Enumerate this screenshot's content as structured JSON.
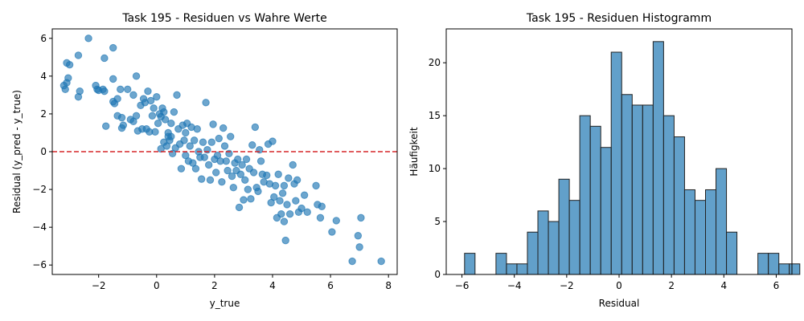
{
  "colors": {
    "marker": "#1f77b4",
    "refline": "#d62728",
    "bar_edge": "#222222"
  },
  "chart_data": [
    {
      "type": "scatter",
      "title": "Task 195 - Residuen vs Wahre Werte",
      "xlabel": "y_true",
      "ylabel": "Residual (y_pred - y_true)",
      "xlim": [
        -3.6,
        8.3
      ],
      "ylim": [
        -6.5,
        6.5
      ],
      "xticks": [
        -2,
        0,
        2,
        4,
        6,
        8
      ],
      "yticks": [
        -6,
        -4,
        -2,
        0,
        2,
        4,
        6
      ],
      "x_tick_labels": [
        "−2",
        "0",
        "2",
        "4",
        "6",
        "8"
      ],
      "y_tick_labels": [
        "−6",
        "−4",
        "−2",
        "0",
        "2",
        "4",
        "6"
      ],
      "reference_line": {
        "y": 0,
        "style": "dashed"
      },
      "grid": false,
      "points": [
        [
          -3.2,
          3.5
        ],
        [
          -3.1,
          4.7
        ],
        [
          -3.0,
          4.6
        ],
        [
          -3.05,
          3.9
        ],
        [
          -3.1,
          3.65
        ],
        [
          -3.15,
          3.3
        ],
        [
          -2.7,
          5.1
        ],
        [
          -2.65,
          3.2
        ],
        [
          -2.7,
          2.9
        ],
        [
          -2.35,
          6.0
        ],
        [
          -2.1,
          3.5
        ],
        [
          -2.05,
          3.3
        ],
        [
          -2.0,
          3.25
        ],
        [
          -1.85,
          3.3
        ],
        [
          -1.8,
          3.2
        ],
        [
          -1.8,
          4.95
        ],
        [
          -1.75,
          1.35
        ],
        [
          -1.5,
          5.5
        ],
        [
          -1.5,
          3.85
        ],
        [
          -1.5,
          2.65
        ],
        [
          -1.45,
          2.55
        ],
        [
          -1.35,
          2.8
        ],
        [
          -1.35,
          1.9
        ],
        [
          -1.25,
          3.3
        ],
        [
          -1.2,
          1.8
        ],
        [
          -1.15,
          1.4
        ],
        [
          -1.2,
          1.25
        ],
        [
          -1.0,
          3.3
        ],
        [
          -0.9,
          1.7
        ],
        [
          -0.8,
          1.6
        ],
        [
          -0.8,
          3.0
        ],
        [
          -0.7,
          4.0
        ],
        [
          -0.7,
          1.9
        ],
        [
          -0.65,
          1.1
        ],
        [
          -0.55,
          2.45
        ],
        [
          -0.5,
          1.2
        ],
        [
          -0.45,
          2.8
        ],
        [
          -0.4,
          2.6
        ],
        [
          -0.35,
          1.2
        ],
        [
          -0.3,
          3.2
        ],
        [
          -0.25,
          1.05
        ],
        [
          -0.2,
          2.7
        ],
        [
          -0.15,
          1.9
        ],
        [
          -0.1,
          2.3
        ],
        [
          -0.05,
          1.05
        ],
        [
          0.0,
          2.9
        ],
        [
          0.05,
          1.5
        ],
        [
          0.1,
          2.0
        ],
        [
          0.15,
          1.85
        ],
        [
          0.15,
          0.15
        ],
        [
          0.2,
          2.3
        ],
        [
          0.25,
          2.1
        ],
        [
          0.25,
          0.5
        ],
        [
          0.3,
          1.7
        ],
        [
          0.35,
          0.3
        ],
        [
          0.4,
          1.0
        ],
        [
          0.4,
          0.8
        ],
        [
          0.45,
          0.6
        ],
        [
          0.5,
          1.5
        ],
        [
          0.5,
          0.8
        ],
        [
          0.55,
          -0.1
        ],
        [
          0.6,
          2.1
        ],
        [
          0.65,
          0.2
        ],
        [
          0.7,
          3.0
        ],
        [
          0.75,
          1.2
        ],
        [
          0.8,
          0.4
        ],
        [
          0.85,
          -0.9
        ],
        [
          0.9,
          1.4
        ],
        [
          0.95,
          0.6
        ],
        [
          1.0,
          -0.2
        ],
        [
          1.0,
          1.0
        ],
        [
          1.05,
          1.5
        ],
        [
          1.1,
          -0.5
        ],
        [
          1.15,
          0.3
        ],
        [
          1.2,
          1.3
        ],
        [
          1.25,
          -0.6
        ],
        [
          1.3,
          0.6
        ],
        [
          1.35,
          -0.9
        ],
        [
          1.4,
          1.2
        ],
        [
          1.45,
          0.0
        ],
        [
          1.5,
          -0.3
        ],
        [
          1.55,
          -1.45
        ],
        [
          1.6,
          0.5
        ],
        [
          1.65,
          -0.3
        ],
        [
          1.7,
          2.6
        ],
        [
          1.75,
          0.1
        ],
        [
          1.8,
          -0.7
        ],
        [
          1.85,
          -1.5
        ],
        [
          1.9,
          0.5
        ],
        [
          1.95,
          1.45
        ],
        [
          2.0,
          -0.4
        ],
        [
          2.05,
          -1.1
        ],
        [
          2.1,
          -0.2
        ],
        [
          2.15,
          0.7
        ],
        [
          2.2,
          -0.5
        ],
        [
          2.25,
          -1.6
        ],
        [
          2.3,
          1.25
        ],
        [
          2.35,
          0.3
        ],
        [
          2.4,
          -0.5
        ],
        [
          2.45,
          -1.0
        ],
        [
          2.5,
          -0.1
        ],
        [
          2.55,
          0.8
        ],
        [
          2.6,
          -1.3
        ],
        [
          2.65,
          -1.9
        ],
        [
          2.7,
          -0.6
        ],
        [
          2.75,
          -1.0
        ],
        [
          2.8,
          -0.4
        ],
        [
          2.85,
          -2.95
        ],
        [
          2.9,
          -1.2
        ],
        [
          2.95,
          -0.7
        ],
        [
          3.0,
          -2.55
        ],
        [
          3.05,
          -1.5
        ],
        [
          3.1,
          -0.4
        ],
        [
          3.15,
          -2.0
        ],
        [
          3.2,
          -0.9
        ],
        [
          3.25,
          -2.5
        ],
        [
          3.3,
          0.35
        ],
        [
          3.35,
          -1.1
        ],
        [
          3.4,
          1.3
        ],
        [
          3.45,
          -1.9
        ],
        [
          3.5,
          -2.1
        ],
        [
          3.55,
          0.1
        ],
        [
          3.6,
          -0.5
        ],
        [
          3.65,
          -1.2
        ],
        [
          3.7,
          -1.6
        ],
        [
          3.8,
          -1.25
        ],
        [
          3.85,
          0.4
        ],
        [
          3.9,
          -1.7
        ],
        [
          3.95,
          -2.7
        ],
        [
          4.0,
          0.55
        ],
        [
          4.05,
          -2.4
        ],
        [
          4.1,
          -1.8
        ],
        [
          4.15,
          -3.5
        ],
        [
          4.2,
          -1.2
        ],
        [
          4.25,
          -2.6
        ],
        [
          4.3,
          -3.3
        ],
        [
          4.35,
          -2.2
        ],
        [
          4.4,
          -1.8
        ],
        [
          4.4,
          -3.7
        ],
        [
          4.45,
          -4.7
        ],
        [
          4.5,
          -2.8
        ],
        [
          4.55,
          -1.4
        ],
        [
          4.6,
          -3.3
        ],
        [
          4.7,
          -0.7
        ],
        [
          4.75,
          -1.7
        ],
        [
          4.8,
          -2.6
        ],
        [
          4.85,
          -1.5
        ],
        [
          4.9,
          -3.2
        ],
        [
          5.0,
          -3.0
        ],
        [
          5.1,
          -2.3
        ],
        [
          5.2,
          -3.2
        ],
        [
          5.5,
          -1.8
        ],
        [
          5.55,
          -2.8
        ],
        [
          5.7,
          -2.9
        ],
        [
          5.65,
          -3.5
        ],
        [
          6.05,
          -4.25
        ],
        [
          6.2,
          -3.65
        ],
        [
          6.75,
          -5.8
        ],
        [
          6.95,
          -4.45
        ],
        [
          7.0,
          -5.05
        ],
        [
          7.05,
          -3.5
        ],
        [
          7.75,
          -5.8
        ]
      ]
    },
    {
      "type": "bar",
      "subtype": "histogram",
      "title": "Task 195 - Residuen Histogramm",
      "xlabel": "Residual",
      "ylabel": "Häufigkeit",
      "xlim": [
        -6.6,
        6.6
      ],
      "ylim": [
        0,
        23.2
      ],
      "xticks": [
        -6,
        -4,
        -2,
        0,
        2,
        4,
        6
      ],
      "yticks": [
        0,
        5,
        10,
        15,
        20
      ],
      "x_tick_labels": [
        "−6",
        "−4",
        "−2",
        "0",
        "2",
        "4",
        "6"
      ],
      "y_tick_labels": [
        "0",
        "5",
        "10",
        "15",
        "20"
      ],
      "grid": false,
      "bin_start": -5.9,
      "bin_width": 0.4,
      "counts": [
        2,
        0,
        0,
        2,
        1,
        1,
        4,
        6,
        5,
        9,
        7,
        15,
        14,
        12,
        21,
        17,
        16,
        16,
        22,
        15,
        13,
        8,
        7,
        8,
        10,
        4,
        0,
        0,
        2,
        2,
        1,
        1
      ]
    }
  ]
}
